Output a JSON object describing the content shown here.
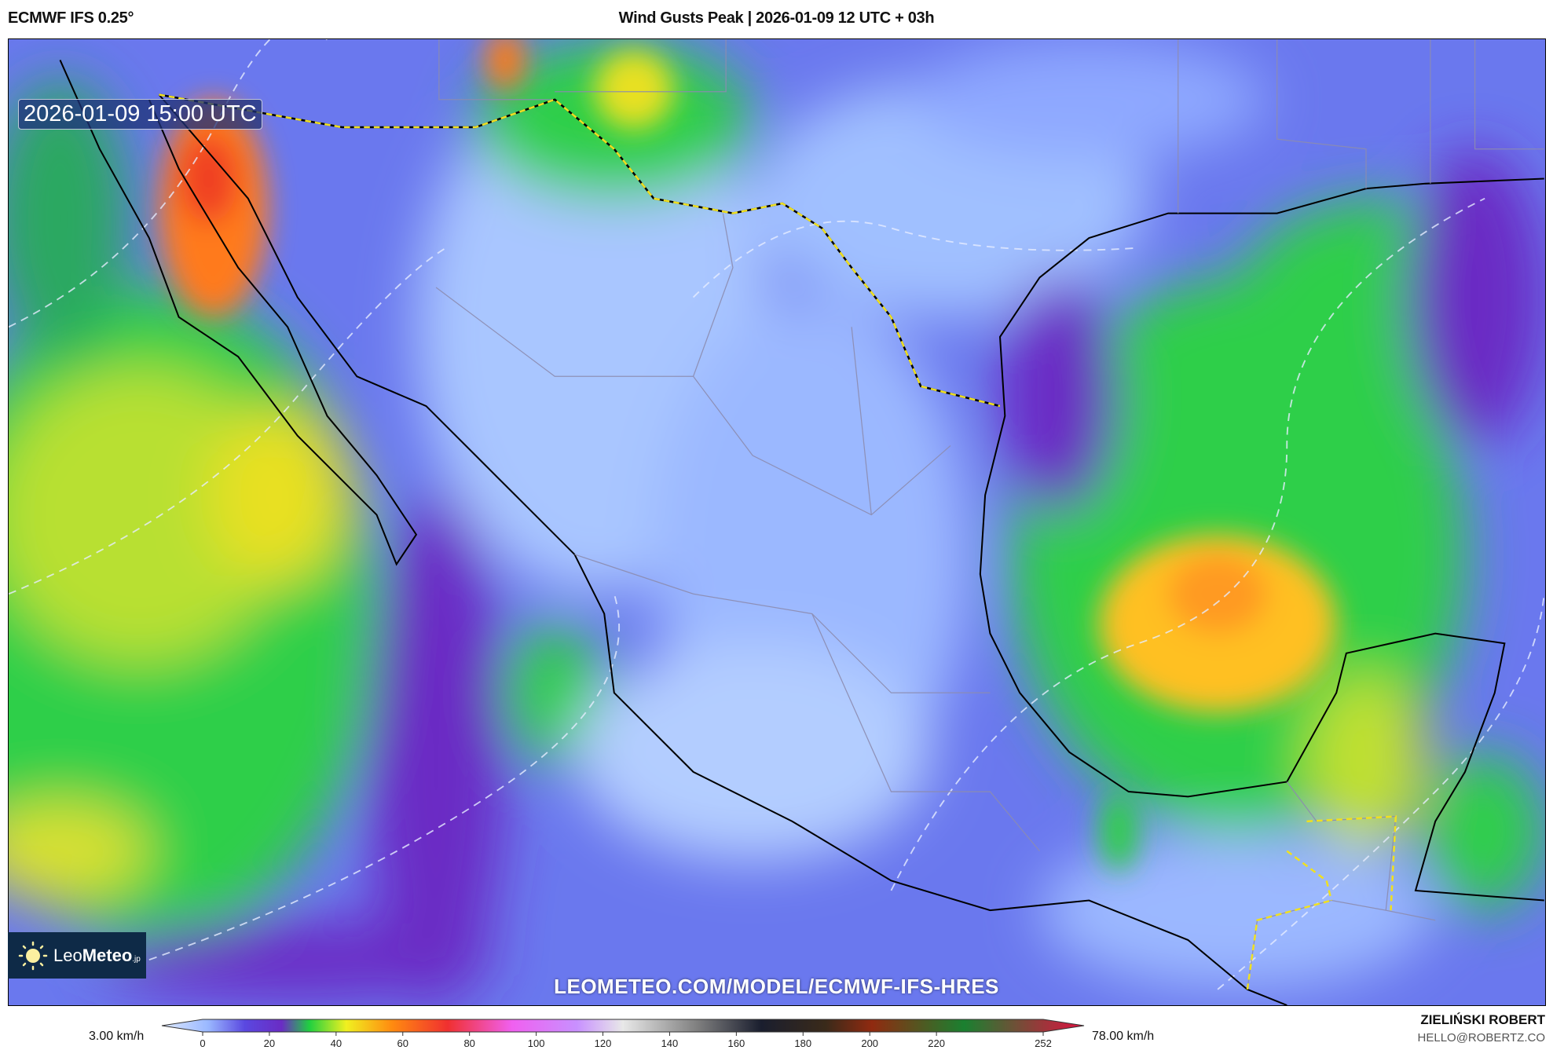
{
  "header": {
    "model": "ECMWF IFS 0.25°",
    "title": "Wind Gusts Peak | 2026-01-09 12 UTC + 03h"
  },
  "map": {
    "valid_time": "2026-01-09 15:00 UTC",
    "watermark_url": "LEOMETEO.COM/MODEL/ECMWF-IFS-HRES",
    "logo": {
      "text_light": "Leo",
      "text_bold": "Meteo",
      "suffix": ".jp"
    },
    "colors": {
      "ocean_base": "#6a78ee",
      "land_low": "#a9c6ff",
      "green": "#2fcf4a",
      "yellow": "#e8e020",
      "orange": "#ff7a1a",
      "purple": "#6a2cc4",
      "border": "#f0e020"
    }
  },
  "colorbar": {
    "min_label": "3.00 km/h",
    "max_label": "78.00 km/h",
    "ticks": [
      "0",
      "20",
      "40",
      "60",
      "80",
      "100",
      "120",
      "140",
      "160",
      "180",
      "200",
      "220",
      "252"
    ],
    "tick_values": [
      0,
      20,
      40,
      60,
      80,
      100,
      120,
      140,
      160,
      180,
      200,
      220,
      252
    ]
  },
  "credit": {
    "author": "ZIELIŃSKI ROBERT",
    "email": "HELLO@ROBERTZ.CO"
  }
}
